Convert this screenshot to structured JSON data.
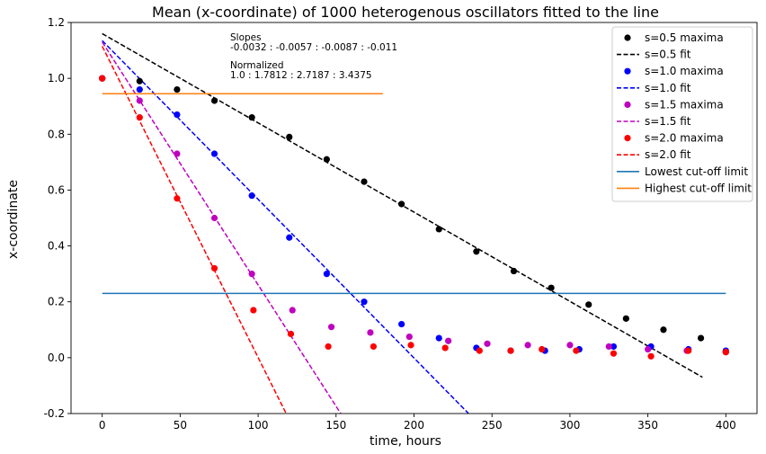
{
  "chart_data": {
    "type": "scatter",
    "title": "Mean (x-coordinate) of 1000 heterogenous oscillators fitted to the line",
    "xlabel": "time, hours",
    "ylabel": "x-coordinate",
    "xlim": [
      -20,
      420
    ],
    "ylim": [
      -0.2,
      1.2
    ],
    "xticks": [
      0,
      50,
      100,
      150,
      200,
      250,
      300,
      350,
      400
    ],
    "yticks": [
      -0.2,
      0.0,
      0.2,
      0.4,
      0.6,
      0.8,
      1.0,
      1.2
    ],
    "grid": false,
    "legend_position": "top-right",
    "annotations": [
      "Slopes",
      "-0.0032 : -0.0057 : -0.0087 : -0.011",
      "Normalized",
      "1.0 : 1.7812 : 2.7187 : 3.4375"
    ],
    "series": [
      {
        "name": "s=0.5 maxima",
        "kind": "scatter",
        "color": "#000000",
        "x": [
          0,
          24,
          48,
          72,
          96,
          120,
          144,
          168,
          192,
          216,
          240,
          264,
          288,
          312,
          336,
          360,
          384
        ],
        "y": [
          1.0,
          0.99,
          0.96,
          0.92,
          0.86,
          0.79,
          0.71,
          0.63,
          0.55,
          0.46,
          0.38,
          0.31,
          0.25,
          0.19,
          0.14,
          0.1,
          0.07
        ]
      },
      {
        "name": "s=0.5 fit",
        "kind": "line",
        "dashed": true,
        "color": "#000000",
        "x": [
          0,
          385
        ],
        "y": [
          1.16,
          -0.07
        ]
      },
      {
        "name": "s=1.0 maxima",
        "kind": "scatter",
        "color": "#0000ff",
        "x": [
          0,
          24,
          48,
          72,
          96,
          120,
          144,
          168,
          192,
          216,
          240,
          262,
          284,
          306,
          328,
          352,
          376,
          400
        ],
        "y": [
          1.0,
          0.96,
          0.87,
          0.73,
          0.58,
          0.43,
          0.3,
          0.2,
          0.12,
          0.07,
          0.035,
          0.025,
          0.025,
          0.03,
          0.04,
          0.04,
          0.03,
          0.025
        ]
      },
      {
        "name": "s=1.0 fit",
        "kind": "line",
        "dashed": true,
        "color": "#0000ff",
        "x": [
          0,
          235
        ],
        "y": [
          1.135,
          -0.2
        ]
      },
      {
        "name": "s=1.5 maxima",
        "kind": "scatter",
        "color": "#bf00bf",
        "x": [
          0,
          24,
          48,
          72,
          96,
          122,
          147,
          172,
          197,
          222,
          247,
          273,
          300,
          325,
          350,
          375,
          400
        ],
        "y": [
          1.0,
          0.92,
          0.73,
          0.5,
          0.3,
          0.17,
          0.11,
          0.09,
          0.075,
          0.06,
          0.05,
          0.045,
          0.045,
          0.04,
          0.03,
          0.025,
          0.02
        ]
      },
      {
        "name": "s=1.5 fit",
        "kind": "line",
        "dashed": true,
        "color": "#bf00bf",
        "x": [
          0,
          153
        ],
        "y": [
          1.13,
          -0.2
        ]
      },
      {
        "name": "s=2.0 maxima",
        "kind": "scatter",
        "color": "#ff0000",
        "x": [
          0,
          24,
          48,
          72,
          97,
          121,
          145,
          174,
          198,
          220,
          242,
          262,
          282,
          304,
          328,
          352,
          376,
          400
        ],
        "y": [
          1.0,
          0.86,
          0.57,
          0.32,
          0.17,
          0.085,
          0.04,
          0.04,
          0.045,
          0.035,
          0.025,
          0.025,
          0.03,
          0.025,
          0.015,
          0.005,
          0.025,
          0.02
        ]
      },
      {
        "name": "s=2.0 fit",
        "kind": "line",
        "dashed": true,
        "color": "#ff0000",
        "x": [
          0,
          118
        ],
        "y": [
          1.115,
          -0.2
        ]
      },
      {
        "name": "Lowest cut-off limit",
        "kind": "line",
        "dashed": false,
        "color": "#1f77b4",
        "x": [
          0,
          400
        ],
        "y": [
          0.23,
          0.23
        ]
      },
      {
        "name": "Highest cut-off limit",
        "kind": "line",
        "dashed": false,
        "color": "#ff7f0e",
        "x": [
          0,
          180
        ],
        "y": [
          0.945,
          0.945
        ]
      }
    ]
  }
}
